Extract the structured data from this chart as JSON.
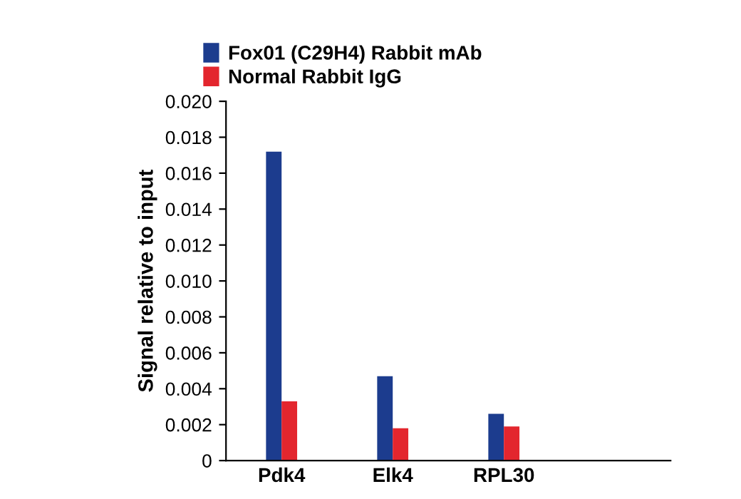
{
  "chart_data": {
    "type": "bar",
    "ylabel": "Signal relative to input",
    "categories": [
      "Pdk4",
      "Elk4",
      "RPL30",
      null
    ],
    "series": [
      {
        "name": "Fox01 (C29H4) Rabbit mAb",
        "color": "#1c3c8e",
        "values": [
          0.0172,
          0.0047,
          0.0026,
          null
        ]
      },
      {
        "name": "Normal Rabbit IgG",
        "color": "#e3262e",
        "values": [
          0.0033,
          0.0018,
          0.0019,
          null
        ]
      }
    ],
    "ylim": [
      0,
      0.02
    ],
    "yticks": [
      {
        "value": 0,
        "label": "0"
      },
      {
        "value": 0.002,
        "label": "0.002"
      },
      {
        "value": 0.004,
        "label": "0.004"
      },
      {
        "value": 0.006,
        "label": "0.006"
      },
      {
        "value": 0.008,
        "label": "0.008"
      },
      {
        "value": 0.01,
        "label": "0.010"
      },
      {
        "value": 0.012,
        "label": "0.012"
      },
      {
        "value": 0.014,
        "label": "0.014"
      },
      {
        "value": 0.016,
        "label": "0.016"
      },
      {
        "value": 0.018,
        "label": "0.018"
      },
      {
        "value": 0.02,
        "label": "0.020"
      }
    ],
    "grid": false,
    "legend": "top left"
  }
}
